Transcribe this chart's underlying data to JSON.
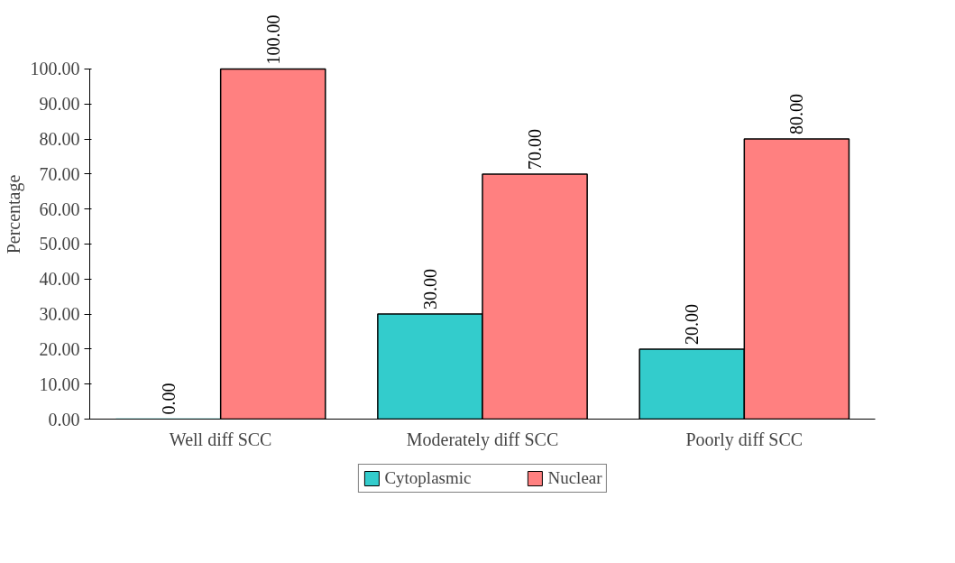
{
  "chart_data": {
    "type": "bar",
    "ylabel": "Percentage",
    "categories": [
      "Well diff SCC",
      "Moderately diff SCC",
      "Poorly diff SCC"
    ],
    "series": [
      {
        "name": "Cytoplasmic",
        "color": "#33cccc",
        "values": [
          0,
          30,
          20
        ],
        "value_labels": [
          "0.00",
          "30.00",
          "20.00"
        ]
      },
      {
        "name": "Nuclear",
        "color": "#ff8080",
        "values": [
          100,
          70,
          80
        ],
        "value_labels": [
          "100.00",
          "70.00",
          "80.00"
        ]
      }
    ],
    "ylim": [
      0,
      100
    ],
    "yticks": [
      {
        "value": 0,
        "label": "0.00"
      },
      {
        "value": 10,
        "label": "10.00"
      },
      {
        "value": 20,
        "label": "20.00"
      },
      {
        "value": 30,
        "label": "30.00"
      },
      {
        "value": 40,
        "label": "40.00"
      },
      {
        "value": 50,
        "label": "50.00"
      },
      {
        "value": 60,
        "label": "60.00"
      },
      {
        "value": 70,
        "label": "70.00"
      },
      {
        "value": 80,
        "label": "80.00"
      },
      {
        "value": 90,
        "label": "90.00"
      },
      {
        "value": 100,
        "label": "100.00"
      }
    ],
    "grid": false,
    "legend": "bottom"
  }
}
